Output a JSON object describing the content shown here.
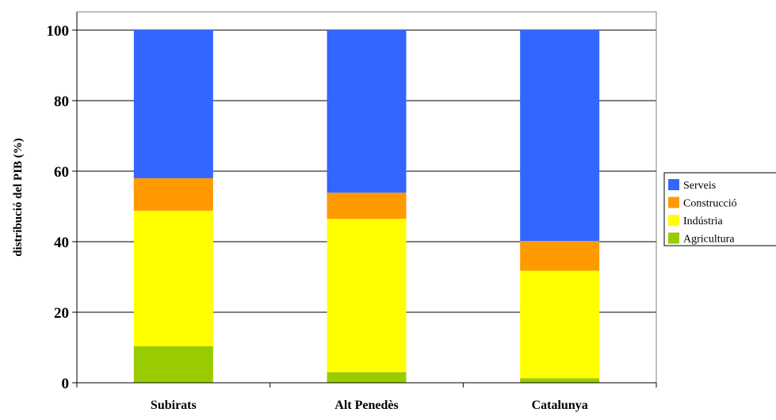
{
  "chart_data": {
    "type": "bar",
    "stacked": true,
    "title": "",
    "xlabel": "",
    "ylabel": "distribució del PIB (%)",
    "ylim": [
      0,
      100
    ],
    "yticks": [
      "0",
      "20",
      "40",
      "60",
      "80",
      "100"
    ],
    "grid": true,
    "legend_position": "right",
    "categories": [
      "Subirats",
      "Alt Penedès",
      "Catalunya"
    ],
    "series": [
      {
        "name": "Agricultura",
        "color": "#99cc00",
        "values": [
          10.4,
          3.0,
          1.3
        ]
      },
      {
        "name": "Indústria",
        "color": "#ffff00",
        "values": [
          38.4,
          43.5,
          30.5
        ]
      },
      {
        "name": "Construcció",
        "color": "#ff9900",
        "values": [
          9.2,
          7.4,
          8.4
        ]
      },
      {
        "name": "Serveis",
        "color": "#3366ff",
        "values": [
          42.0,
          46.1,
          59.8
        ]
      }
    ],
    "legend_order": [
      "Serveis",
      "Construcció",
      "Indústria",
      "Agricultura"
    ]
  }
}
